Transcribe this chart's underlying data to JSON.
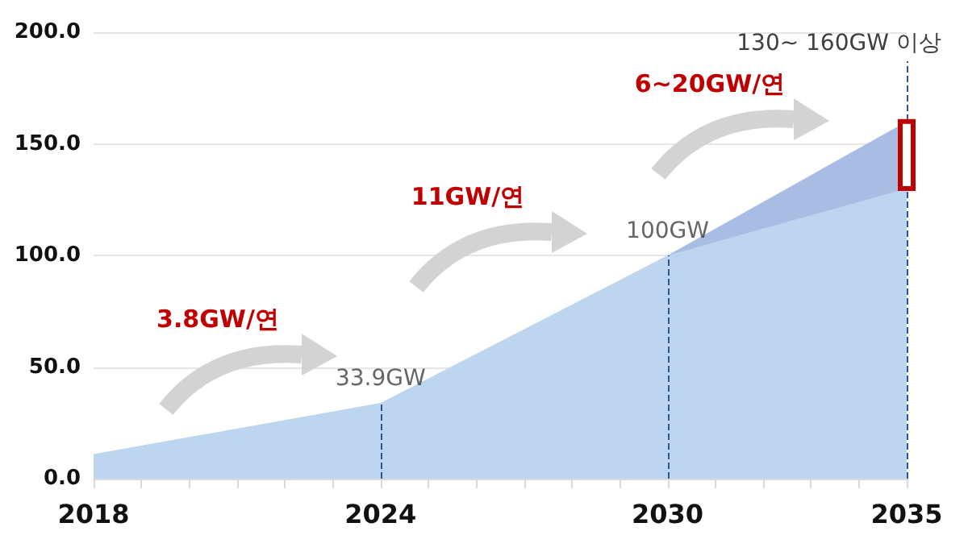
{
  "chart_data": {
    "type": "area",
    "xlim": [
      2018,
      2035
    ],
    "xticks": [
      {
        "value": 2018,
        "label": "2018"
      },
      {
        "value": 2019,
        "label": null
      },
      {
        "value": 2020,
        "label": null
      },
      {
        "value": 2021,
        "label": null
      },
      {
        "value": 2022,
        "label": null
      },
      {
        "value": 2023,
        "label": null
      },
      {
        "value": 2024,
        "label": "2024"
      },
      {
        "value": 2025,
        "label": null
      },
      {
        "value": 2026,
        "label": null
      },
      {
        "value": 2027,
        "label": null
      },
      {
        "value": 2028,
        "label": null
      },
      {
        "value": 2029,
        "label": null
      },
      {
        "value": 2030,
        "label": "2030"
      },
      {
        "value": 2031,
        "label": null
      },
      {
        "value": 2032,
        "label": null
      },
      {
        "value": 2033,
        "label": null
      },
      {
        "value": 2034,
        "label": null
      },
      {
        "value": 2035,
        "label": "2035"
      }
    ],
    "ylim": [
      0,
      200
    ],
    "yticks": [
      {
        "value": 0,
        "label": "0.0"
      },
      {
        "value": 50,
        "label": "50.0"
      },
      {
        "value": 100,
        "label": "100.0"
      },
      {
        "value": 150,
        "label": "150.0"
      },
      {
        "value": 200,
        "label": "200.0"
      }
    ],
    "grid": "y",
    "series": [
      {
        "type": "area",
        "color": "#a9bce4",
        "x": [
          2030,
          2035
        ],
        "values": [
          100,
          160
        ]
      },
      {
        "color": "#bdd5ee",
        "x": [
          2018,
          2024,
          2030,
          2035
        ],
        "values": [
          11,
          33.9,
          100,
          130
        ],
        "value_labels": [
          null,
          "33.9GW",
          "100GW",
          null
        ]
      },
      {
        "type": "bar",
        "color": "#c00000",
        "x": [
          2035
        ],
        "base": [
          130
        ],
        "values": [
          30
        ]
      }
    ],
    "ref_lines": [
      {
        "axis": "x",
        "value": 2024,
        "color": "#2e5597",
        "line_style": "dashed"
      },
      {
        "axis": "x",
        "value": 2030,
        "color": "#2e5597",
        "line_style": "dashed"
      },
      {
        "axis": "x",
        "value": 2035,
        "color": "#2e5597",
        "line_style": "dashed",
        "label": "130~ 160GW 이상"
      }
    ],
    "annotations": [
      "3.8GW/연",
      "11GW/연",
      "6~20GW/연"
    ]
  }
}
